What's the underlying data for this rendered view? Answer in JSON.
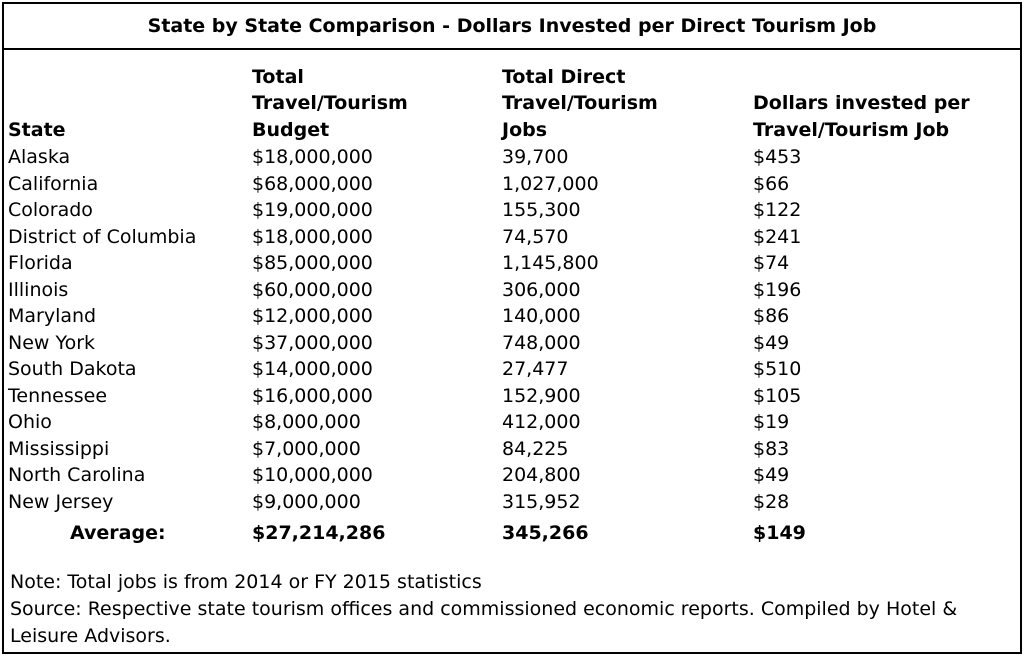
{
  "title": "State by State Comparison - Dollars Invested per Direct Tourism Job",
  "table": {
    "columns": [
      [
        "State"
      ],
      [
        "Total",
        "Travel/Tourism",
        "Budget"
      ],
      [
        "Total Direct",
        "Travel/Tourism",
        "Jobs"
      ],
      [
        "Dollars invested per",
        "Travel/Tourism Job"
      ]
    ],
    "rows": [
      [
        "Alaska",
        "$18,000,000",
        "39,700",
        "$453"
      ],
      [
        "California",
        "$68,000,000",
        "1,027,000",
        "$66"
      ],
      [
        "Colorado",
        "$19,000,000",
        "155,300",
        "$122"
      ],
      [
        "District of Columbia",
        "$18,000,000",
        "74,570",
        "$241"
      ],
      [
        "Florida",
        "$85,000,000",
        "1,145,800",
        "$74"
      ],
      [
        "Illinois",
        "$60,000,000",
        "306,000",
        "$196"
      ],
      [
        "Maryland",
        "$12,000,000",
        "140,000",
        "$86"
      ],
      [
        "New York",
        "$37,000,000",
        "748,000",
        "$49"
      ],
      [
        "South Dakota",
        "$14,000,000",
        "27,477",
        "$510"
      ],
      [
        "Tennessee",
        "$16,000,000",
        "152,900",
        "$105"
      ],
      [
        "Ohio",
        "$8,000,000",
        "412,000",
        "$19"
      ],
      [
        "Mississippi",
        "$7,000,000",
        "84,225",
        "$83"
      ],
      [
        "North Carolina",
        "$10,000,000",
        "204,800",
        "$49"
      ],
      [
        "New Jersey",
        "$9,000,000",
        "315,952",
        "$28"
      ]
    ],
    "average": [
      "Average:",
      "$27,214,286",
      "345,266",
      "$149"
    ]
  },
  "notes": [
    "Note: Total jobs is from 2014 or FY 2015 statistics",
    "Source: Respective state tourism offices and commissioned economic reports. Compiled by Hotel & Leisure Advisors."
  ]
}
